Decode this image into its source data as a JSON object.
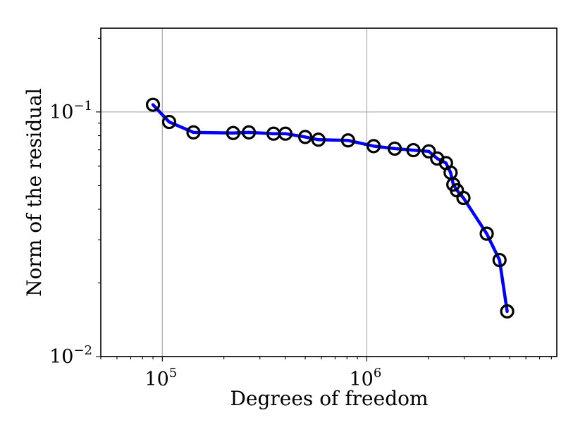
{
  "chart_data": {
    "type": "line",
    "title": "",
    "xlabel": "Degrees of freedom",
    "ylabel": "Norm of the residual",
    "xscale": "log",
    "yscale": "log",
    "xlim": [
      50000,
      8500000
    ],
    "ylim": [
      0.01,
      0.22
    ],
    "grid": true,
    "legend": "none",
    "x_ticks": [
      {
        "value": 100000,
        "base": "10",
        "exp": "5"
      },
      {
        "value": 1000000,
        "base": "10",
        "exp": "6"
      }
    ],
    "y_ticks": [
      {
        "value": 0.01,
        "base": "10",
        "exp": "−2"
      },
      {
        "value": 0.1,
        "base": "10",
        "exp": "−1"
      }
    ],
    "series": [
      {
        "line_color": "#0000ff",
        "marker_color": "#000000",
        "marker": "open-circle",
        "x": [
          90000,
          108000,
          142000,
          222000,
          265000,
          350000,
          400000,
          500000,
          580000,
          810000,
          1080000,
          1370000,
          1690000,
          2010000,
          2210000,
          2440000,
          2570000,
          2650000,
          2760000,
          2970000,
          3860000,
          4460000,
          4860000
        ],
        "y": [
          0.107,
          0.091,
          0.0825,
          0.082,
          0.0825,
          0.0815,
          0.0815,
          0.079,
          0.077,
          0.0765,
          0.0725,
          0.0708,
          0.0698,
          0.069,
          0.0645,
          0.0618,
          0.0565,
          0.0505,
          0.0478,
          0.0445,
          0.0318,
          0.0248,
          0.0153
        ]
      }
    ]
  }
}
